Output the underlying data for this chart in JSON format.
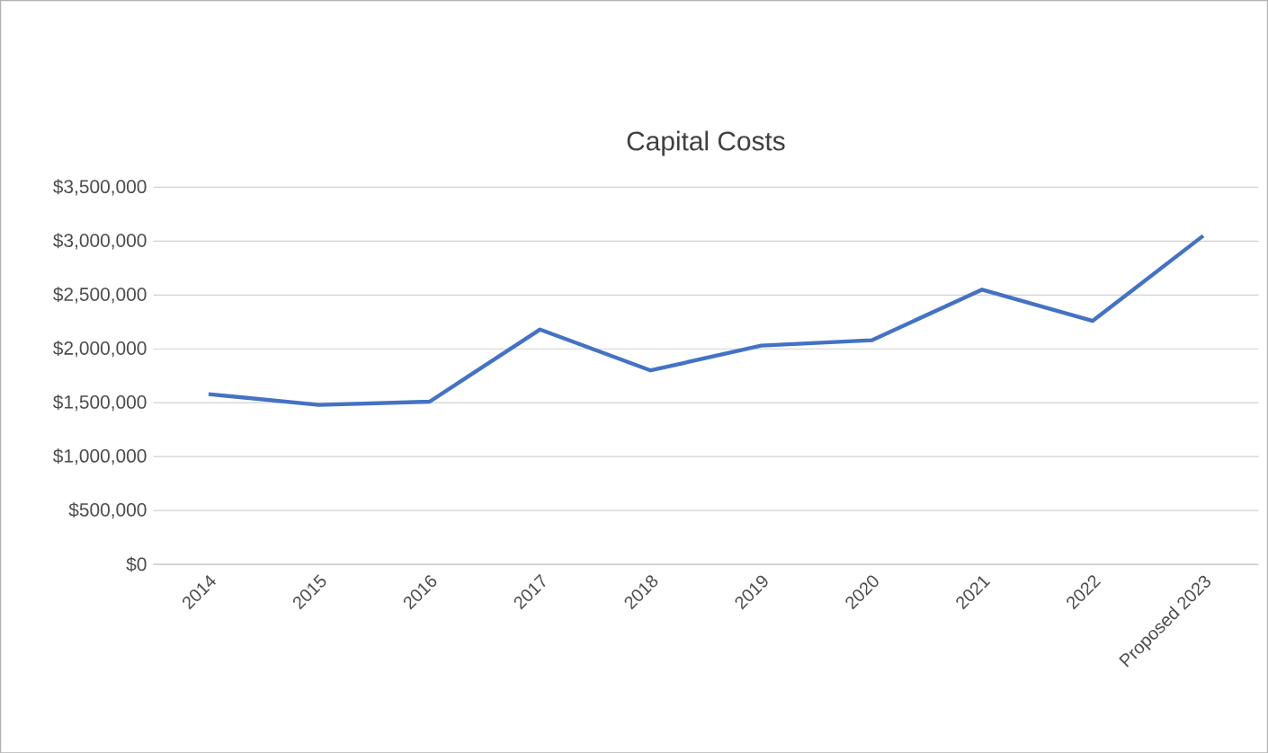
{
  "chart_data": {
    "type": "line",
    "title": "Capital Costs",
    "categories": [
      "2014",
      "2015",
      "2016",
      "2017",
      "2018",
      "2019",
      "2020",
      "2021",
      "2022",
      "Proposed 2023"
    ],
    "series": [
      {
        "color": "#4472c4",
        "values": [
          1580000,
          1480000,
          1510000,
          2180000,
          1800000,
          2030000,
          2080000,
          2550000,
          2260000,
          3050000
        ]
      }
    ],
    "ylim": [
      0,
      3500000
    ],
    "yticks": [
      {
        "value": 0,
        "label": "$0"
      },
      {
        "value": 500000,
        "label": "$500,000"
      },
      {
        "value": 1000000,
        "label": "$1,000,000"
      },
      {
        "value": 1500000,
        "label": "$1,500,000"
      },
      {
        "value": 2000000,
        "label": "$2,000,000"
      },
      {
        "value": 2500000,
        "label": "$2,500,000"
      },
      {
        "value": 3000000,
        "label": "$3,000,000"
      },
      {
        "value": 3500000,
        "label": "$3,500,000"
      }
    ],
    "grid": "y",
    "legend": false,
    "marker": "none",
    "line_style": "solid"
  }
}
